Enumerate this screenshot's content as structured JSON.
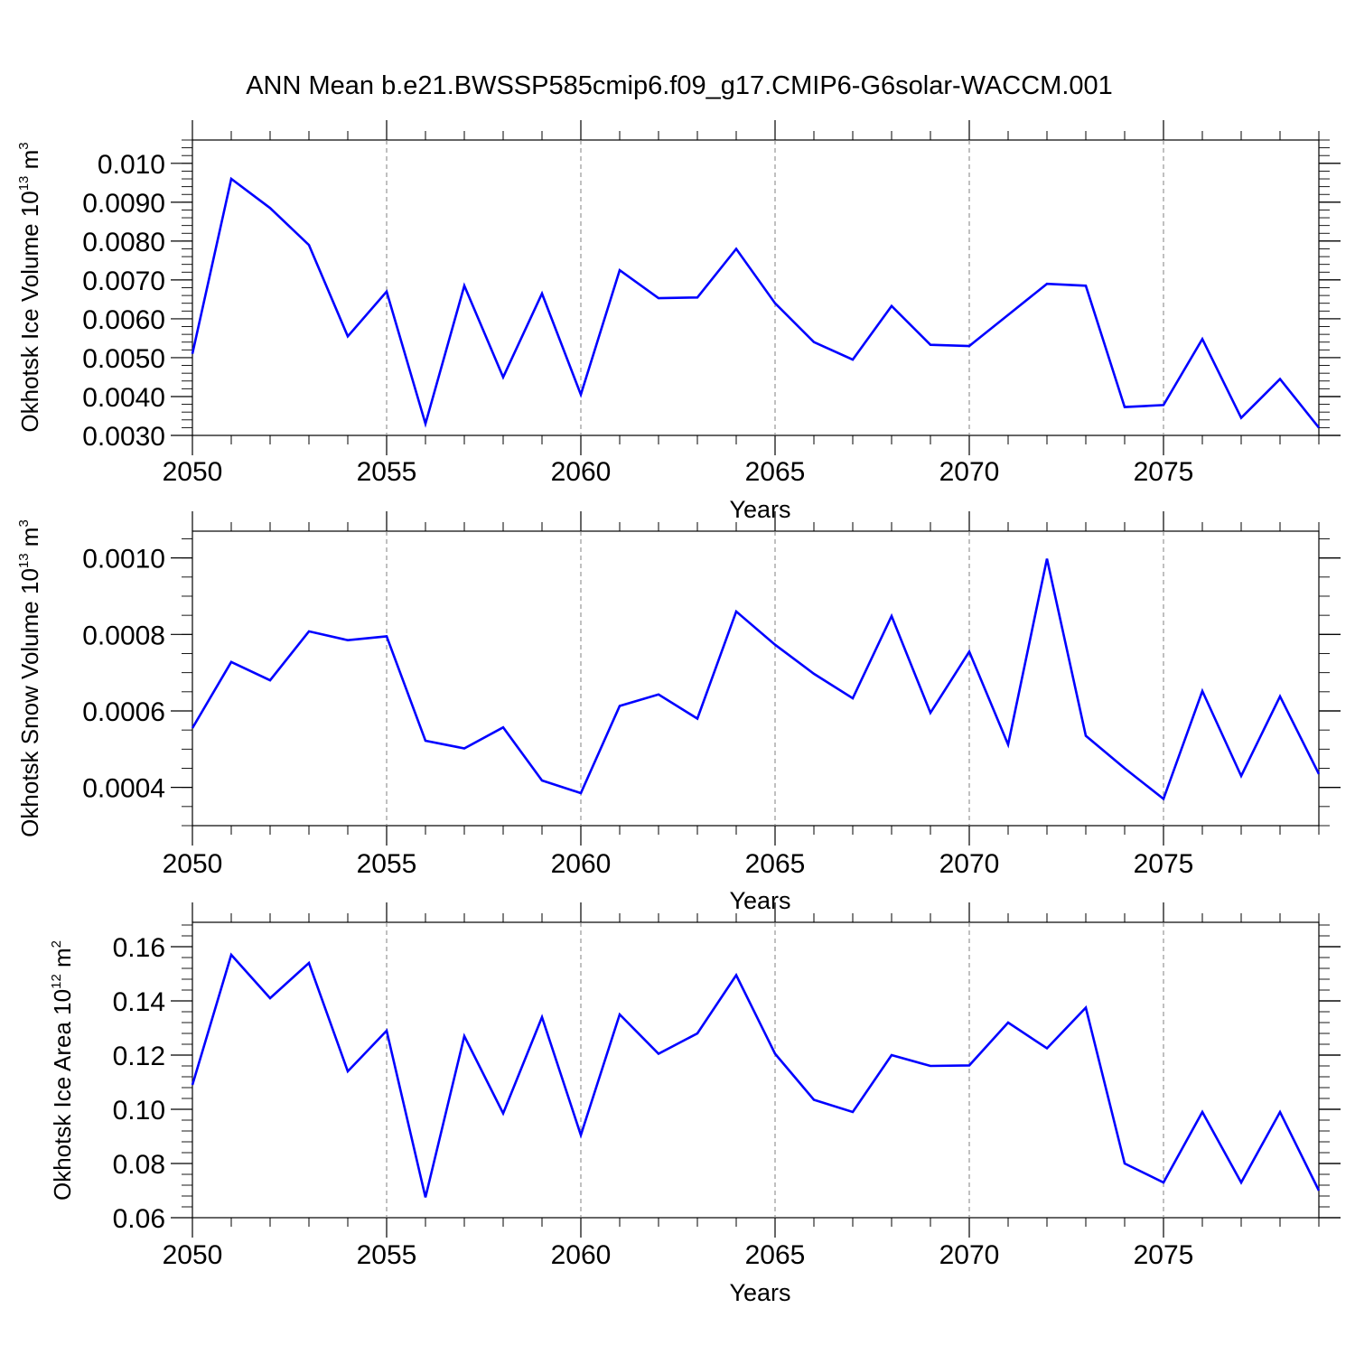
{
  "title": "ANN Mean b.e21.BWSSP585cmip6.f09_g17.CMIP6-G6solar-WACCM.001",
  "colors": {
    "line": "#0000ff",
    "axes": "#000000",
    "grid": "#808080"
  },
  "chart_data": [
    {
      "type": "line",
      "xlabel": "Years",
      "ylabel": {
        "text": "Okhotsk Ice Volume 10",
        "exp": "13",
        "unit": " m",
        "unit_exp": "3"
      },
      "xlim": [
        2050,
        2079
      ],
      "ylim": [
        0.003,
        0.0106
      ],
      "xticks": [
        2050,
        2055,
        2060,
        2065,
        2070,
        2075
      ],
      "xtick_labels": [
        "2050",
        "2055",
        "2060",
        "2065",
        "2070",
        "2075"
      ],
      "yticks": [
        0.003,
        0.004,
        0.005,
        0.006,
        0.007,
        0.008,
        0.009,
        0.01
      ],
      "ytick_labels": [
        "0.0030",
        "0.0040",
        "0.0050",
        "0.0060",
        "0.0070",
        "0.0080",
        "0.0090",
        "0.010"
      ],
      "yminor_step": 0.0002,
      "grid": "vertical dashed at major x ticks",
      "x": [
        2050,
        2051,
        2052,
        2053,
        2054,
        2055,
        2056,
        2057,
        2058,
        2059,
        2060,
        2061,
        2062,
        2063,
        2064,
        2065,
        2066,
        2067,
        2068,
        2069,
        2070,
        2071,
        2072,
        2073,
        2074,
        2075,
        2076,
        2077,
        2078,
        2079
      ],
      "values": [
        0.0051,
        0.0096,
        0.00885,
        0.0079,
        0.00555,
        0.0067,
        0.0033,
        0.00685,
        0.0045,
        0.00665,
        0.00405,
        0.00725,
        0.00653,
        0.00655,
        0.0078,
        0.0064,
        0.0054,
        0.00495,
        0.00633,
        0.00533,
        0.0053,
        0.0061,
        0.0069,
        0.00685,
        0.00373,
        0.00378,
        0.00548,
        0.00345,
        0.00445,
        0.0032
      ]
    },
    {
      "type": "line",
      "xlabel": "Years",
      "ylabel": {
        "text": "Okhotsk Snow Volume 10",
        "exp": "13",
        "unit": " m",
        "unit_exp": "3"
      },
      "xlim": [
        2050,
        2079
      ],
      "ylim": [
        0.0003,
        0.00107
      ],
      "xticks": [
        2050,
        2055,
        2060,
        2065,
        2070,
        2075
      ],
      "xtick_labels": [
        "2050",
        "2055",
        "2060",
        "2065",
        "2070",
        "2075"
      ],
      "yticks": [
        0.0004,
        0.0006,
        0.0008,
        0.001
      ],
      "ytick_labels": [
        "0.0004",
        "0.0006",
        "0.0008",
        "0.0010"
      ],
      "yminor_step": 5e-05,
      "grid": "vertical dashed at major x ticks",
      "x": [
        2050,
        2051,
        2052,
        2053,
        2054,
        2055,
        2056,
        2057,
        2058,
        2059,
        2060,
        2061,
        2062,
        2063,
        2064,
        2065,
        2066,
        2067,
        2068,
        2069,
        2070,
        2071,
        2072,
        2073,
        2074,
        2075,
        2076,
        2077,
        2078,
        2079
      ],
      "values": [
        0.000555,
        0.000728,
        0.00068,
        0.000808,
        0.000785,
        0.000795,
        0.000522,
        0.000502,
        0.000557,
        0.000418,
        0.000385,
        0.000613,
        0.000643,
        0.00058,
        0.00086,
        0.000773,
        0.000697,
        0.000633,
        0.000848,
        0.000595,
        0.000755,
        0.000512,
        0.000998,
        0.000535,
        0.00045,
        0.00037,
        0.000652,
        0.00043,
        0.000638,
        0.000435
      ]
    },
    {
      "type": "line",
      "xlabel": "Years",
      "ylabel": {
        "text": "Okhotsk Ice Area 10",
        "exp": "12",
        "unit": " m",
        "unit_exp": "2"
      },
      "xlim": [
        2050,
        2079
      ],
      "ylim": [
        0.06,
        0.169
      ],
      "xticks": [
        2050,
        2055,
        2060,
        2065,
        2070,
        2075
      ],
      "xtick_labels": [
        "2050",
        "2055",
        "2060",
        "2065",
        "2070",
        "2075"
      ],
      "yticks": [
        0.06,
        0.08,
        0.1,
        0.12,
        0.14,
        0.16
      ],
      "ytick_labels": [
        "0.06",
        "0.08",
        "0.10",
        "0.12",
        "0.14",
        "0.16"
      ],
      "yminor_step": 0.004,
      "grid": "vertical dashed at major x ticks",
      "x": [
        2050,
        2051,
        2052,
        2053,
        2054,
        2055,
        2056,
        2057,
        2058,
        2059,
        2060,
        2061,
        2062,
        2063,
        2064,
        2065,
        2066,
        2067,
        2068,
        2069,
        2070,
        2071,
        2072,
        2073,
        2074,
        2075,
        2076,
        2077,
        2078,
        2079
      ],
      "values": [
        0.109,
        0.157,
        0.141,
        0.154,
        0.114,
        0.129,
        0.0675,
        0.127,
        0.0985,
        0.134,
        0.0905,
        0.135,
        0.1205,
        0.128,
        0.1495,
        0.1205,
        0.1035,
        0.099,
        0.12,
        0.116,
        0.1162,
        0.132,
        0.1225,
        0.1375,
        0.08,
        0.073,
        0.099,
        0.073,
        0.099,
        0.07
      ]
    }
  ]
}
